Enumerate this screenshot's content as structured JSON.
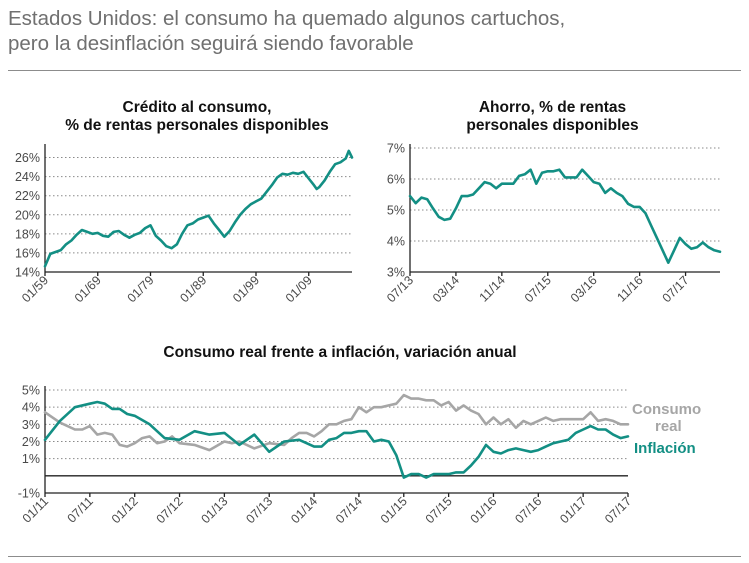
{
  "header": {
    "title_line1": "Estados Unidos: el consumo ha quemado algunos cartuchos,",
    "title_line2": "pero la desinflación seguirá siendo favorable"
  },
  "colors": {
    "teal": "#138f84",
    "gray": "#a6a6a6",
    "title_gray": "#707070"
  },
  "chart_data": [
    {
      "id": "credit",
      "type": "line",
      "title": [
        "Crédito al consumo,",
        "% de rentas personales disponibles"
      ],
      "xlabel": "",
      "ylabel": "",
      "ylim": [
        14,
        27
      ],
      "y_ticks": [
        14,
        16,
        18,
        20,
        22,
        24,
        26
      ],
      "y_tick_labels": [
        "14%",
        "16%",
        "18%",
        "20%",
        "22%",
        "24%",
        "26%"
      ],
      "x_range": [
        1959.0,
        2017.2
      ],
      "x_ticks": [
        1959,
        1969,
        1979,
        1989,
        1999,
        2009
      ],
      "x_tick_labels": [
        "01/59",
        "01/69",
        "01/79",
        "01/89",
        "01/99",
        "01/09"
      ],
      "series": [
        {
          "name": "Crédito al consumo",
          "color": "#138f84",
          "x": [
            1959.0,
            1960.0,
            1961.0,
            1962.0,
            1963.0,
            1964.0,
            1965.0,
            1966.0,
            1967.0,
            1968.0,
            1969.0,
            1970.0,
            1971.0,
            1972.0,
            1973.0,
            1974.0,
            1975.0,
            1976.0,
            1977.0,
            1978.0,
            1979.0,
            1980.0,
            1981.0,
            1982.0,
            1983.0,
            1984.0,
            1985.0,
            1986.0,
            1987.0,
            1988.0,
            1989.0,
            1990.0,
            1991.0,
            1992.0,
            1993.0,
            1994.0,
            1995.0,
            1996.0,
            1997.0,
            1998.0,
            1999.0,
            2000.0,
            2001.0,
            2002.0,
            2003.0,
            2004.0,
            2005.0,
            2006.0,
            2007.0,
            2008.0,
            2009.0,
            2010.0,
            2010.5,
            2011.0,
            2012.0,
            2013.0,
            2014.0,
            2015.0,
            2016.0,
            2016.6,
            2017.2
          ],
          "values": [
            14.6,
            15.9,
            16.1,
            16.3,
            16.9,
            17.3,
            17.9,
            18.4,
            18.2,
            18.0,
            18.1,
            17.8,
            17.7,
            18.2,
            18.3,
            17.9,
            17.6,
            17.9,
            18.1,
            18.6,
            18.9,
            17.8,
            17.3,
            16.7,
            16.5,
            16.9,
            18.0,
            18.9,
            19.1,
            19.5,
            19.7,
            19.9,
            19.1,
            18.4,
            17.7,
            18.3,
            19.2,
            20.0,
            20.6,
            21.1,
            21.4,
            21.7,
            22.4,
            23.1,
            23.9,
            24.3,
            24.2,
            24.4,
            24.3,
            24.5,
            23.8,
            23.1,
            22.7,
            22.9,
            23.6,
            24.5,
            25.3,
            25.5,
            25.9,
            26.7,
            26.0
          ]
        }
      ]
    },
    {
      "id": "savings",
      "type": "line",
      "title": [
        "Ahorro, % de rentas",
        "personales disponibles"
      ],
      "xlabel": "",
      "ylabel": "",
      "ylim": [
        3,
        7
      ],
      "y_ticks": [
        3,
        4,
        5,
        6,
        7
      ],
      "y_tick_labels": [
        "3%",
        "4%",
        "5%",
        "6%",
        "7%"
      ],
      "x_range": [
        0,
        54
      ],
      "x_ticks": [
        0,
        8,
        16,
        24,
        32,
        40,
        48
      ],
      "x_tick_labels": [
        "07/13",
        "03/14",
        "11/14",
        "07/15",
        "03/16",
        "11/16",
        "07/17"
      ],
      "series": [
        {
          "name": "Ahorro",
          "color": "#138f84",
          "x": [
            0,
            1,
            2,
            3,
            4,
            5,
            6,
            7,
            8,
            9,
            10,
            11,
            12,
            13,
            14,
            15,
            16,
            17,
            18,
            19,
            20,
            21,
            22,
            23,
            24,
            25,
            26,
            27,
            28,
            29,
            30,
            31,
            32,
            33,
            34,
            35,
            36,
            37,
            38,
            39,
            40,
            41,
            42,
            43,
            44,
            45,
            46,
            47,
            48,
            49,
            50,
            51,
            52,
            53,
            54
          ],
          "values": [
            5.45,
            5.22,
            5.4,
            5.35,
            5.05,
            4.78,
            4.68,
            4.72,
            5.05,
            5.45,
            5.45,
            5.5,
            5.7,
            5.9,
            5.85,
            5.7,
            5.85,
            5.85,
            5.85,
            6.1,
            6.15,
            6.3,
            5.85,
            6.2,
            6.25,
            6.25,
            6.3,
            6.05,
            6.05,
            6.05,
            6.3,
            6.1,
            5.9,
            5.85,
            5.55,
            5.7,
            5.55,
            5.45,
            5.2,
            5.1,
            5.1,
            4.9,
            4.5,
            4.1,
            3.7,
            3.3,
            3.7,
            4.1,
            3.9,
            3.75,
            3.8,
            3.95,
            3.8,
            3.7,
            3.65
          ]
        }
      ]
    },
    {
      "id": "consumption-vs-inflation",
      "type": "line",
      "title": [
        "Consumo real frente a inflación, variación anual"
      ],
      "xlabel": "",
      "ylabel": "",
      "ylim": [
        -1,
        5
      ],
      "y_ticks": [
        -1,
        0,
        1,
        2,
        3,
        4,
        5
      ],
      "y_tick_labels": [
        "-1%",
        "",
        "1%",
        "2%",
        "3%",
        "4%",
        "5%"
      ],
      "x_range": [
        0,
        78
      ],
      "x_ticks": [
        0,
        6,
        12,
        18,
        24,
        30,
        36,
        42,
        48,
        54,
        60,
        66,
        72,
        78
      ],
      "x_tick_labels": [
        "01/11",
        "07/11",
        "01/12",
        "07/12",
        "01/13",
        "07/13",
        "01/14",
        "07/14",
        "01/15",
        "07/15",
        "01/16",
        "07/16",
        "01/17",
        "07/17"
      ],
      "series": [
        {
          "name": "Consumo real",
          "label_lines": [
            "Consumo",
            "real"
          ],
          "color": "#a6a6a6",
          "x": [
            0,
            2,
            4,
            5,
            6,
            7,
            8,
            9,
            10,
            11,
            12,
            13,
            14,
            15,
            16,
            17,
            18,
            20,
            22,
            24,
            25,
            26,
            28,
            30,
            32,
            33,
            34,
            35,
            36,
            37,
            38,
            39,
            40,
            41,
            42,
            43,
            44,
            45,
            46,
            47,
            48,
            49,
            50,
            51,
            52,
            53,
            54,
            55,
            56,
            57,
            58,
            59,
            60,
            61,
            62,
            63,
            64,
            65,
            66,
            67,
            68,
            69,
            70,
            71,
            72,
            73,
            74,
            75,
            76,
            77,
            78
          ],
          "values": [
            3.7,
            3.1,
            2.7,
            2.7,
            2.9,
            2.4,
            2.5,
            2.4,
            1.8,
            1.7,
            1.9,
            2.2,
            2.3,
            1.9,
            2.0,
            2.3,
            1.9,
            1.8,
            1.5,
            2.0,
            1.9,
            2.0,
            1.6,
            1.9,
            1.8,
            2.2,
            2.5,
            2.5,
            2.3,
            2.6,
            3.0,
            3.0,
            3.2,
            3.3,
            4.0,
            3.7,
            4.0,
            4.0,
            4.1,
            4.2,
            4.7,
            4.5,
            4.5,
            4.4,
            4.4,
            4.1,
            4.3,
            3.8,
            4.1,
            3.8,
            3.6,
            3.0,
            3.4,
            3.0,
            3.3,
            2.8,
            3.2,
            3.0,
            3.2,
            3.4,
            3.2,
            3.3,
            3.3,
            3.3,
            3.3,
            3.7,
            3.2,
            3.3,
            3.2,
            3.0,
            3.0
          ]
        },
        {
          "name": "Inflación",
          "label_lines": [
            "Inflación"
          ],
          "color": "#138f84",
          "x": [
            0,
            2,
            4,
            6,
            7,
            8,
            9,
            10,
            11,
            12,
            14,
            16,
            18,
            20,
            22,
            24,
            26,
            28,
            30,
            32,
            34,
            36,
            37,
            38,
            39,
            40,
            41,
            42,
            43,
            44,
            45,
            46,
            47,
            48,
            49,
            50,
            51,
            52,
            53,
            54,
            55,
            56,
            57,
            58,
            59,
            60,
            61,
            62,
            63,
            64,
            65,
            66,
            67,
            68,
            69,
            70,
            71,
            72,
            73,
            74,
            75,
            76,
            77,
            78
          ],
          "values": [
            2.1,
            3.2,
            4.0,
            4.2,
            4.3,
            4.2,
            3.9,
            3.9,
            3.6,
            3.5,
            3.0,
            2.2,
            2.1,
            2.6,
            2.4,
            2.5,
            1.8,
            2.4,
            1.4,
            2.0,
            2.1,
            1.7,
            1.7,
            2.1,
            2.2,
            2.5,
            2.5,
            2.6,
            2.6,
            2.0,
            2.1,
            2.0,
            1.2,
            -0.1,
            0.1,
            0.1,
            -0.1,
            0.1,
            0.1,
            0.1,
            0.2,
            0.2,
            0.6,
            1.1,
            1.8,
            1.4,
            1.3,
            1.5,
            1.6,
            1.5,
            1.4,
            1.5,
            1.7,
            1.9,
            2.0,
            2.1,
            2.5,
            2.7,
            2.9,
            2.7,
            2.7,
            2.4,
            2.2,
            2.3
          ]
        }
      ]
    }
  ]
}
